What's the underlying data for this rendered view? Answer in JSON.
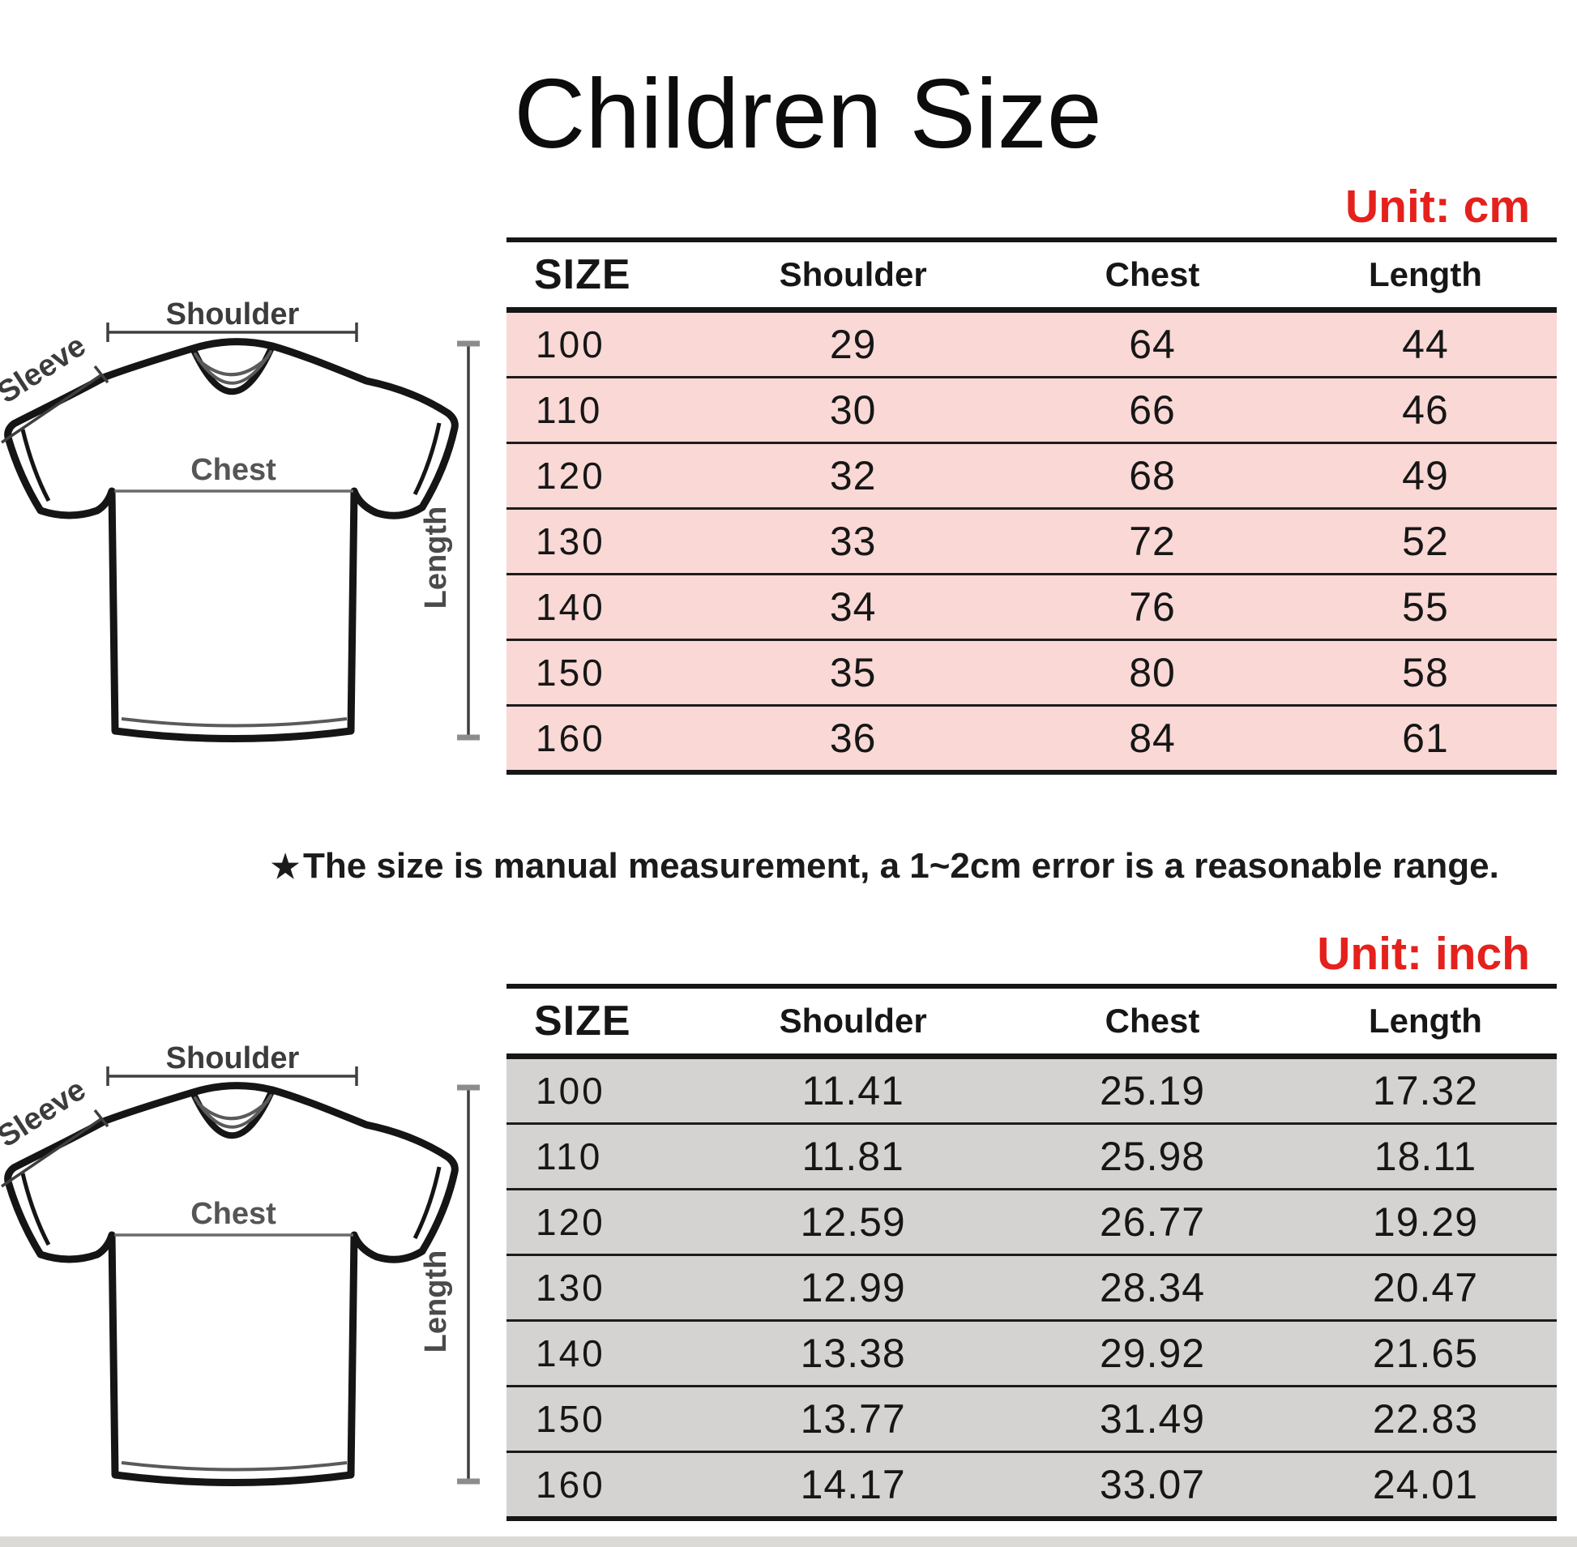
{
  "title": "Children Size",
  "note": {
    "star": "★",
    "text": "The size is manual measurement, a 1~2cm error is a reasonable range."
  },
  "diagram": {
    "shoulder": "Shoulder",
    "sleeve": "Sleeve",
    "chest": "Chest",
    "length": "Length"
  },
  "colors": {
    "accent_red": "#e4211c",
    "table_line": "#161616",
    "cm_row_bg": "#f9d8d5",
    "inch_row_bg": "#d5d3d1"
  },
  "tables": [
    {
      "id": "cm",
      "unit_label": "Unit: cm",
      "columns": [
        "SIZE",
        "Shoulder",
        "Chest",
        "Length"
      ],
      "rows": [
        [
          "100",
          "29",
          "64",
          "44"
        ],
        [
          "110",
          "30",
          "66",
          "46"
        ],
        [
          "120",
          "32",
          "68",
          "49"
        ],
        [
          "130",
          "33",
          "72",
          "52"
        ],
        [
          "140",
          "34",
          "76",
          "55"
        ],
        [
          "150",
          "35",
          "80",
          "58"
        ],
        [
          "160",
          "36",
          "84",
          "61"
        ]
      ]
    },
    {
      "id": "inch",
      "unit_label": "Unit: inch",
      "columns": [
        "SIZE",
        "Shoulder",
        "Chest",
        "Length"
      ],
      "rows": [
        [
          "100",
          "11.41",
          "25.19",
          "17.32"
        ],
        [
          "110",
          "11.81",
          "25.98",
          "18.11"
        ],
        [
          "120",
          "12.59",
          "26.77",
          "19.29"
        ],
        [
          "130",
          "12.99",
          "28.34",
          "20.47"
        ],
        [
          "140",
          "13.38",
          "29.92",
          "21.65"
        ],
        [
          "150",
          "13.77",
          "31.49",
          "22.83"
        ],
        [
          "160",
          "14.17",
          "33.07",
          "24.01"
        ]
      ]
    }
  ]
}
